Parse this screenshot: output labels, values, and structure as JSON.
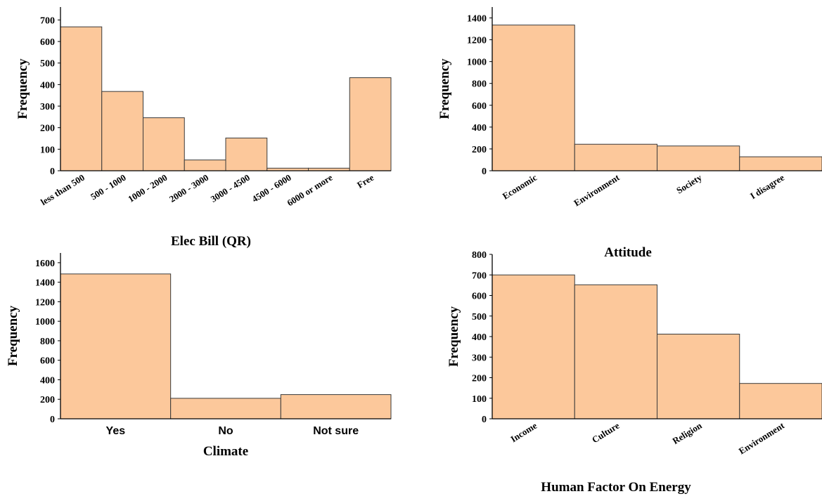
{
  "style": {
    "bar_fill": "#fcc89b",
    "bar_stroke": "#3a3a3a",
    "axis_color": "#000000"
  },
  "chart_data": [
    {
      "type": "bar",
      "categories": [
        "less than 500",
        "500 - 1000",
        "1000 - 2000",
        "2000 - 3000",
        "3000 - 4500",
        "4500 - 6000",
        "6000 or more",
        "Free"
      ],
      "values": [
        668,
        368,
        246,
        50,
        152,
        12,
        12,
        432
      ],
      "xlabel": "Elec Bill (QR)",
      "ylabel": "Frequency",
      "ylim": [
        0,
        760
      ],
      "yticks": [
        "0",
        "100",
        "200",
        "300",
        "400",
        "500",
        "600",
        "700"
      ],
      "grid": false
    },
    {
      "type": "bar",
      "categories": [
        "Economic",
        "Environment",
        "Society",
        "I disagree"
      ],
      "values": [
        1335,
        243,
        227,
        128
      ],
      "xlabel": "Attitude",
      "ylabel": "Frequency",
      "ylim": [
        0,
        1500
      ],
      "yticks": [
        "0",
        "200",
        "400",
        "600",
        "800",
        "1000",
        "1200",
        "1400"
      ],
      "grid": false
    },
    {
      "type": "bar",
      "categories": [
        "Yes",
        "No",
        "Not sure"
      ],
      "values": [
        1485,
        210,
        248
      ],
      "xlabel": "Climate",
      "ylabel": "Frequency",
      "ylim": [
        0,
        1700
      ],
      "yticks": [
        "0",
        "200",
        "400",
        "600",
        "800",
        "1000",
        "1200",
        "1400",
        "1600"
      ],
      "grid": false
    },
    {
      "type": "bar",
      "categories": [
        "Income",
        "Culture",
        "Religion",
        "Environment"
      ],
      "values": [
        700,
        652,
        412,
        172
      ],
      "xlabel": "Human Factor On Energy",
      "ylabel": "Frequency",
      "ylim": [
        0,
        800
      ],
      "yticks": [
        "0",
        "100",
        "200",
        "300",
        "400",
        "500",
        "600",
        "700",
        "800"
      ],
      "grid": false
    }
  ]
}
